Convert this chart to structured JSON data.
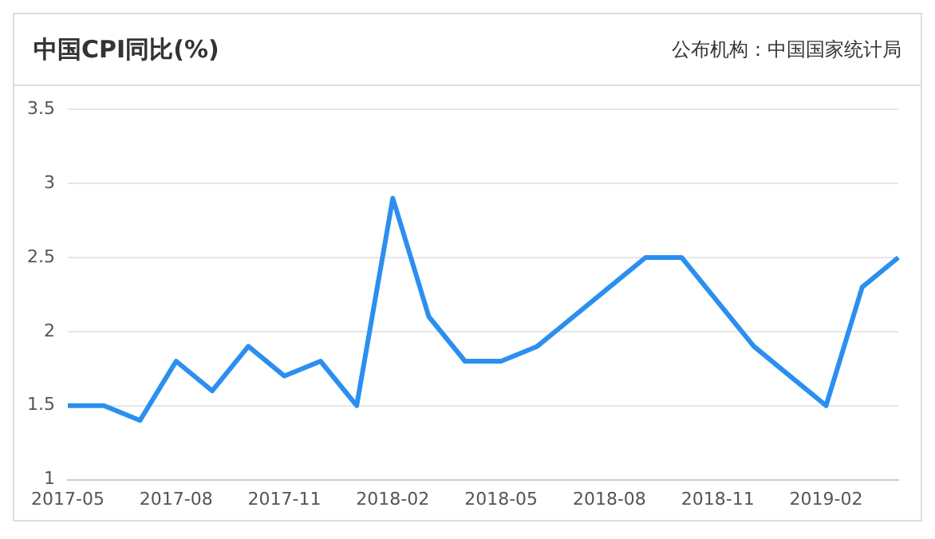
{
  "chart_data": {
    "type": "line",
    "title": "中国CPI同比(%)",
    "annotations": [
      "公布机构：中国国家统计局"
    ],
    "categories": [
      "2017-05",
      null,
      null,
      "2017-08",
      null,
      null,
      "2017-11",
      null,
      null,
      "2018-02",
      null,
      null,
      "2018-05",
      null,
      null,
      "2018-08",
      null,
      null,
      "2018-11",
      null,
      null,
      "2019-02",
      null,
      null
    ],
    "series": [
      {
        "color": "#2b8ff0",
        "values": [
          1.5,
          1.5,
          1.4,
          1.8,
          1.6,
          1.9,
          1.7,
          1.8,
          1.5,
          2.9,
          2.1,
          1.8,
          1.8,
          1.9,
          2.1,
          2.3,
          2.5,
          2.5,
          2.2,
          1.9,
          1.7,
          1.5,
          2.3,
          2.5
        ]
      }
    ],
    "ylim": [
      1,
      3.5
    ],
    "yticks": [
      1,
      1.5,
      2,
      2.5,
      3,
      3.5
    ],
    "grid": "y",
    "legend": false,
    "marker": "none",
    "line_style": "solid"
  }
}
